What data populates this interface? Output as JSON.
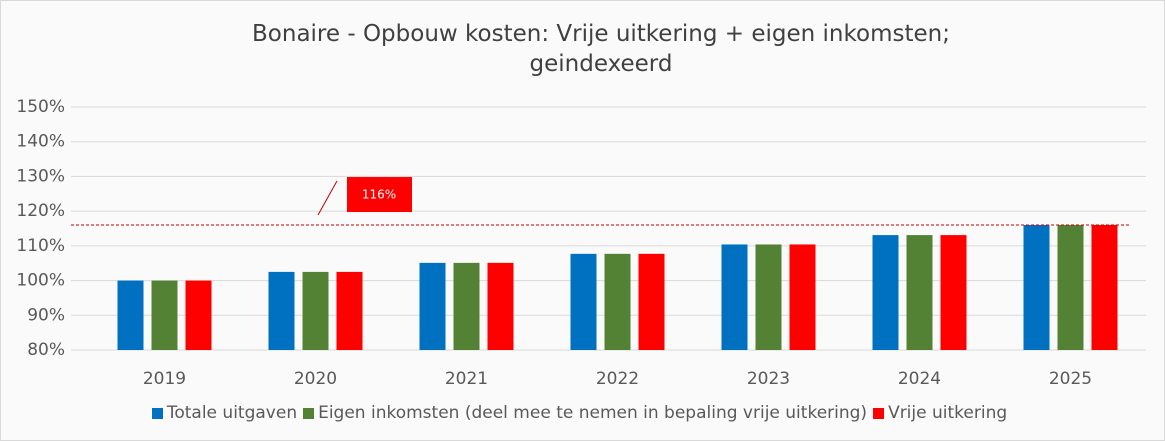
{
  "chart_data": {
    "type": "bar",
    "title": "Bonaire - Opbouw kosten: Vrije uitkering + eigen inkomsten; geindexeerd",
    "categories": [
      "2019",
      "2020",
      "2021",
      "2022",
      "2023",
      "2024",
      "2025"
    ],
    "series": [
      {
        "name": "Totale uitgaven",
        "color": "#0070c0",
        "values": [
          100,
          102.5,
          105.1,
          107.7,
          110.4,
          113.1,
          116
        ]
      },
      {
        "name": "Eigen inkomsten (deel mee te nemen in bepaling vrije uitkering)",
        "color": "#548235",
        "values": [
          100,
          102.5,
          105.1,
          107.7,
          110.4,
          113.1,
          116
        ]
      },
      {
        "name": "Vrije uitkering",
        "color": "#ff0000",
        "values": [
          100,
          102.5,
          105.1,
          107.7,
          110.4,
          113.1,
          116
        ]
      }
    ],
    "ylim": [
      80,
      150
    ],
    "yticks": [
      {
        "value": 80,
        "label": "80%"
      },
      {
        "value": 90,
        "label": "90%"
      },
      {
        "value": 100,
        "label": "100%"
      },
      {
        "value": 110,
        "label": "110%"
      },
      {
        "value": 120,
        "label": "120%"
      },
      {
        "value": 130,
        "label": "130%"
      },
      {
        "value": 140,
        "label": "140%"
      },
      {
        "value": 150,
        "label": "150%"
      }
    ],
    "grid": true,
    "reference_line": {
      "value": 116,
      "label": "116%",
      "color": "#c00000"
    }
  }
}
